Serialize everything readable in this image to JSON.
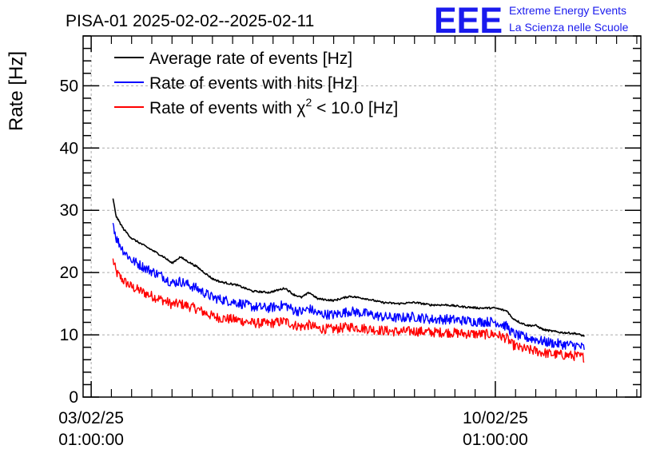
{
  "title": "PISA-01 2025-02-02--2025-02-11",
  "logo": {
    "mark": "EEE",
    "line1": "Extreme Energy Events",
    "line2": "La Scienza nelle Scuole"
  },
  "colors": {
    "average": "#000000",
    "hits": "#0000ff",
    "chi2": "#ff0000",
    "logo": "#1a1aee"
  },
  "chart_data": {
    "type": "line",
    "title": "PISA-01 2025-02-02--2025-02-11",
    "xlabel": "",
    "ylabel": "Rate [Hz]",
    "x_unit": "days since 03/02/25 01:00:00",
    "xlim": [
      -0.1,
      6.8
    ],
    "ylim": [
      0,
      58
    ],
    "y_ticks": [
      0,
      10,
      20,
      30,
      40,
      50
    ],
    "x_ticks": [
      {
        "x": 0,
        "line1": "03/02/25",
        "line2": "01:00:00"
      },
      {
        "x": 5,
        "line1": "10/02/25",
        "line2": "01:00:00"
      }
    ],
    "grid": true,
    "legend_position": "top-left",
    "series": [
      {
        "name": "Average rate of events [Hz]",
        "key": "average",
        "noise": 0.15,
        "x": [
          0.27,
          0.31,
          0.4,
          0.5,
          0.7,
          0.9,
          1.0,
          1.1,
          1.3,
          1.5,
          1.6,
          1.8,
          2.0,
          2.2,
          2.4,
          2.5,
          2.6,
          2.7,
          2.8,
          3.0,
          3.2,
          3.4,
          3.6,
          3.8,
          4.0,
          4.2,
          4.4,
          4.6,
          4.8,
          5.0,
          5.15,
          5.2,
          5.3,
          5.4,
          5.5,
          5.6,
          5.7,
          5.8,
          5.9,
          6.0,
          6.1
        ],
        "y": [
          31.8,
          29.0,
          27.0,
          25.5,
          24.0,
          22.5,
          21.5,
          22.5,
          21.0,
          19.0,
          18.5,
          18.0,
          17.0,
          16.8,
          17.5,
          16.5,
          16.0,
          16.8,
          15.8,
          15.5,
          16.2,
          15.8,
          15.2,
          15.0,
          15.2,
          14.8,
          14.8,
          14.5,
          14.3,
          14.3,
          13.8,
          12.8,
          12.0,
          11.5,
          11.5,
          10.8,
          10.6,
          10.4,
          10.3,
          10.2,
          9.8
        ]
      },
      {
        "name": "Rate of events with hits [Hz]",
        "key": "hits",
        "noise": 0.8,
        "x": [
          0.27,
          0.31,
          0.4,
          0.5,
          0.7,
          0.9,
          1.0,
          1.1,
          1.3,
          1.5,
          1.6,
          1.8,
          2.0,
          2.2,
          2.4,
          2.5,
          2.6,
          2.7,
          2.8,
          3.0,
          3.2,
          3.4,
          3.6,
          3.8,
          4.0,
          4.2,
          4.4,
          4.6,
          4.8,
          5.0,
          5.15,
          5.2,
          5.3,
          5.4,
          5.5,
          5.6,
          5.7,
          5.8,
          5.9,
          6.0,
          6.1
        ],
        "y": [
          28.0,
          25.5,
          23.5,
          22.0,
          20.5,
          19.3,
          18.3,
          18.6,
          17.5,
          16.0,
          15.7,
          15.2,
          14.5,
          14.3,
          14.8,
          14.0,
          13.7,
          14.2,
          13.4,
          13.2,
          13.8,
          13.4,
          12.9,
          12.7,
          12.9,
          12.5,
          12.5,
          12.3,
          12.1,
          12.1,
          11.3,
          10.4,
          9.8,
          9.5,
          9.3,
          8.9,
          8.7,
          8.5,
          8.4,
          8.3,
          7.9
        ]
      },
      {
        "name": "Rate of events with χ² < 10.0 [Hz]",
        "key": "chi2",
        "noise": 0.8,
        "x": [
          0.27,
          0.31,
          0.4,
          0.5,
          0.7,
          0.9,
          1.0,
          1.1,
          1.3,
          1.5,
          1.6,
          1.8,
          2.0,
          2.2,
          2.4,
          2.5,
          2.6,
          2.7,
          2.8,
          3.0,
          3.2,
          3.4,
          3.6,
          3.8,
          4.0,
          4.2,
          4.4,
          4.6,
          4.8,
          5.0,
          5.15,
          5.2,
          5.3,
          5.4,
          5.5,
          5.6,
          5.7,
          5.8,
          5.9,
          6.0,
          6.1
        ],
        "y": [
          22.0,
          20.0,
          18.7,
          17.7,
          16.5,
          15.5,
          14.9,
          15.0,
          14.2,
          13.0,
          12.7,
          12.4,
          11.9,
          11.8,
          12.2,
          11.6,
          11.3,
          11.6,
          11.0,
          10.9,
          11.3,
          11.0,
          10.7,
          10.5,
          10.6,
          10.4,
          10.4,
          10.2,
          10.1,
          10.1,
          9.4,
          8.5,
          7.9,
          7.6,
          7.4,
          7.1,
          6.9,
          6.8,
          6.7,
          6.6,
          6.4
        ]
      }
    ],
    "legend": [
      {
        "label": "Average rate of events [Hz]",
        "key": "average"
      },
      {
        "label": "Rate of events with hits [Hz]",
        "key": "hits"
      },
      {
        "label_main": "Rate of events with χ",
        "label_sup": "2",
        "label_tail": " < 10.0 [Hz]",
        "key": "chi2"
      }
    ]
  }
}
